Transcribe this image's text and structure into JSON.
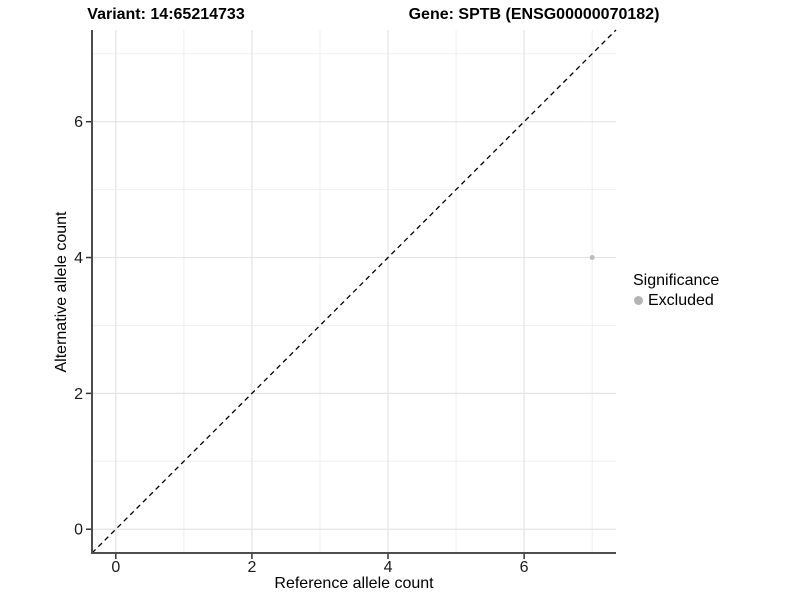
{
  "chart_data": {
    "type": "scatter",
    "title_left": "Variant: 14:65214733",
    "title_right": "Gene: SPTB (ENSG00000070182)",
    "xlabel": "Reference allele count",
    "ylabel": "Alternative allele count",
    "xlim": [
      -0.35,
      7.35
    ],
    "ylim": [
      -0.35,
      7.35
    ],
    "x_major_ticks": [
      0,
      2,
      4,
      6
    ],
    "x_minor_gridlines": [
      1,
      3,
      5,
      7
    ],
    "y_major_ticks": [
      0,
      2,
      4,
      6
    ],
    "y_minor_gridlines": [
      1,
      3,
      5,
      7
    ],
    "grid": true,
    "identity_line": {
      "style": "dashed",
      "from": [
        -0.35,
        -0.35
      ],
      "to": [
        7.35,
        7.35
      ],
      "color": "#000000"
    },
    "series": [
      {
        "name": "Excluded",
        "color": "#bebebe",
        "points": [
          {
            "x": 7,
            "y": 4
          }
        ]
      }
    ],
    "legend_position": "right"
  },
  "legend": {
    "title": "Significance",
    "entries": [
      {
        "label": "Excluded",
        "color": "#b3b3b3"
      }
    ]
  },
  "colors": {
    "background": "#ffffff",
    "axis_line": "#4d4d4d",
    "tick_mark": "#333333",
    "grid_major": "#e4e4e4",
    "grid_minor": "#efefef",
    "dashed_line": "#000000",
    "point_excluded": "#bebebe"
  }
}
